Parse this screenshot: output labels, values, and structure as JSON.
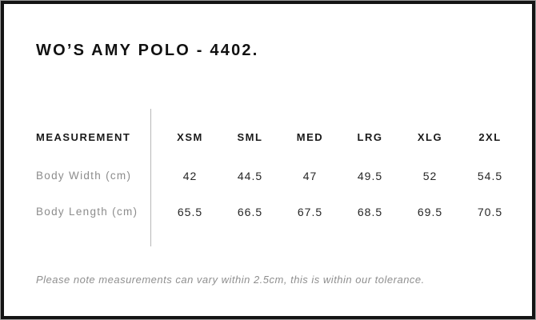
{
  "page": {
    "title": "WO’S AMY POLO - 4402.",
    "note": "Please note measurements can vary within 2.5cm, this is within our tolerance."
  },
  "table": {
    "header": {
      "measurement": "MEASUREMENT",
      "sizes": [
        "XSM",
        "SML",
        "MED",
        "LRG",
        "XLG",
        "2XL"
      ]
    },
    "rows": [
      {
        "label": "Body Width (cm)",
        "values": [
          "42",
          "44.5",
          "47",
          "49.5",
          "52",
          "54.5"
        ]
      },
      {
        "label": "Body Length (cm)",
        "values": [
          "65.5",
          "66.5",
          "67.5",
          "68.5",
          "69.5",
          "70.5"
        ]
      }
    ]
  },
  "colors": {
    "border": "#141414",
    "title": "#111111",
    "header_text": "#1a1a1a",
    "label_text": "#8c8c8c",
    "value_text": "#262626",
    "divider": "#b8b8b8",
    "note_text": "#8f8f8f",
    "card_bg": "#ffffff",
    "outer_edge": "#9c9c9c"
  }
}
